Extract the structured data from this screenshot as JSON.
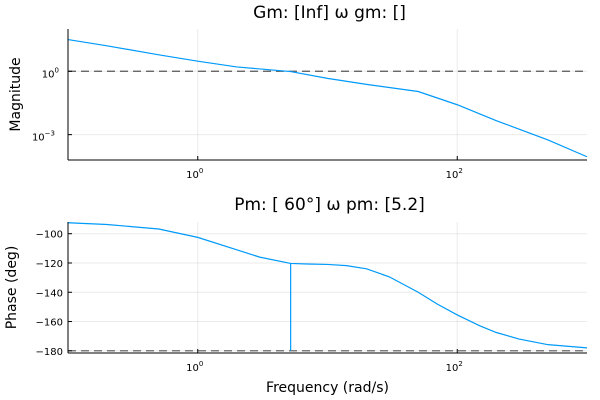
{
  "chart_data": [
    {
      "type": "line",
      "panel": "magnitude",
      "title": "Gm: [Inf]  ω gm: []",
      "xlabel": "",
      "ylabel": "Magnitude",
      "xscale": "log10",
      "yscale": "log10",
      "xlim": [
        0.1,
        1000
      ],
      "ylim": [
        6.31e-05,
        100
      ],
      "xticks": [
        {
          "value": 1,
          "base": "10",
          "exp": "0"
        },
        {
          "value": 100,
          "base": "10",
          "exp": "2"
        }
      ],
      "yticks": [
        {
          "value": 1,
          "base": "10",
          "exp": "0"
        },
        {
          "value": 0.001,
          "base": "10",
          "exp": "−3"
        }
      ],
      "grid": true,
      "series": [
        {
          "color": "#009AFA",
          "x": [
            0.1,
            0.2,
            0.5,
            1,
            2,
            5.2,
            10,
            20,
            50,
            100,
            200,
            500,
            1000
          ],
          "y": [
            31.6,
            16.0,
            6.0,
            3.0,
            1.6,
            0.97,
            0.46,
            0.24,
            0.11,
            0.026,
            0.0046,
            0.00056,
            9e-05
          ]
        }
      ],
      "reference_lines": [
        {
          "axis": "y",
          "value": 1,
          "color": "#555555",
          "style": "dashed"
        }
      ]
    },
    {
      "type": "line",
      "panel": "phase",
      "title": "Pm: [ 60°]  ω pm: [5.2]",
      "xlabel": "Frequency (rad/s)",
      "ylabel": "Phase (deg)",
      "xscale": "log10",
      "xlim": [
        0.1,
        1000
      ],
      "ylim": [
        -181.5,
        -92
      ],
      "xticks": [
        {
          "value": 1,
          "base": "10",
          "exp": "0"
        },
        {
          "value": 100,
          "base": "10",
          "exp": "2"
        }
      ],
      "yticks": [
        -100,
        -120,
        -140,
        -160,
        -180
      ],
      "grid": true,
      "series": [
        {
          "color": "#009AFA",
          "x": [
            0.1,
            0.2,
            0.5,
            1,
            2,
            3,
            5.2,
            7,
            10,
            14,
            20,
            30,
            50,
            70,
            100,
            150,
            200,
            300,
            500,
            1000
          ],
          "y": [
            -92.5,
            -93.7,
            -96.8,
            -102.5,
            -111,
            -116,
            -120.3,
            -120.7,
            -121,
            -121.8,
            -124,
            -129.5,
            -140,
            -148,
            -155.5,
            -163,
            -167.5,
            -172,
            -175.8,
            -178
          ]
        }
      ],
      "reference_lines": [
        {
          "axis": "y",
          "value": -180,
          "color": "#555555",
          "style": "dashed"
        }
      ],
      "margin_marker": {
        "x": 5.2,
        "from": -180,
        "to": -120,
        "color": "#009AFA"
      }
    }
  ]
}
